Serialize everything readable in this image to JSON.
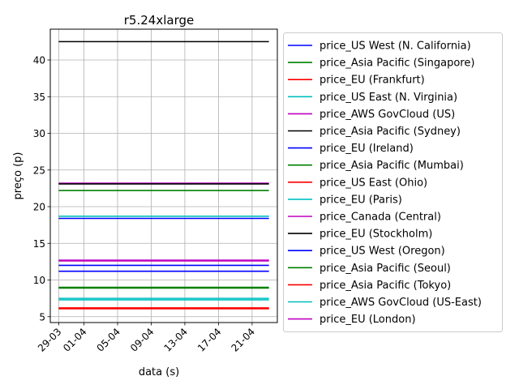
{
  "chart_data": {
    "type": "line",
    "title": "r5.24xlarge",
    "xlabel": "data (s)",
    "ylabel": "preço (p)",
    "x_range": [
      "2018-03-29",
      "2018-04-23"
    ],
    "xlim": [
      "2018-03-28",
      "2018-04-24"
    ],
    "ylim": [
      4.2,
      44.2
    ],
    "x_ticks": [
      {
        "date": "2018-03-29",
        "label": "29-03"
      },
      {
        "date": "2018-04-01",
        "label": "01-04"
      },
      {
        "date": "2018-04-05",
        "label": "05-04"
      },
      {
        "date": "2018-04-09",
        "label": "09-04"
      },
      {
        "date": "2018-04-13",
        "label": "13-04"
      },
      {
        "date": "2018-04-17",
        "label": "17-04"
      },
      {
        "date": "2018-04-21",
        "label": "21-04"
      }
    ],
    "y_ticks": [
      5,
      10,
      15,
      20,
      25,
      30,
      35,
      40
    ],
    "grid": true,
    "legend_placement": "outside-right",
    "series": [
      {
        "name": "price_US West (N. California)",
        "color": "#0000ff",
        "value": 11.2
      },
      {
        "name": "price_Asia Pacific (Singapore)",
        "color": "#008000",
        "value": 22.2
      },
      {
        "name": "price_EU (Frankfurt)",
        "color": "#ff0000",
        "value": 6.2
      },
      {
        "name": "price_US East (N. Virginia)",
        "color": "#00bfbf",
        "value": 7.3
      },
      {
        "name": "price_AWS GovCloud (US)",
        "color": "#bf00bf",
        "value": 12.6
      },
      {
        "name": "price_Asia Pacific (Sydney)",
        "color": "#000000",
        "value": 42.5
      },
      {
        "name": "price_EU (Ireland)",
        "color": "#0000ff",
        "value": 12.0
      },
      {
        "name": "price_Asia Pacific (Mumbai)",
        "color": "#008000",
        "value": 8.9
      },
      {
        "name": "price_US East (Ohio)",
        "color": "#ff0000",
        "value": 6.1
      },
      {
        "name": "price_EU (Paris)",
        "color": "#00bfbf",
        "value": 18.7
      },
      {
        "name": "price_Canada (Central)",
        "color": "#bf00bf",
        "value": 23.2
      },
      {
        "name": "price_EU (Stockholm)",
        "color": "#000000",
        "value": 23.1
      },
      {
        "name": "price_US West (Oregon)",
        "color": "#0000ff",
        "value": 18.4
      },
      {
        "name": "price_Asia Pacific (Seoul)",
        "color": "#008000",
        "value": 9.0
      },
      {
        "name": "price_Asia Pacific (Tokyo)",
        "color": "#ff0000",
        "value": 6.1
      },
      {
        "name": "price_AWS GovCloud (US-East)",
        "color": "#00bfbf",
        "value": 7.5
      },
      {
        "name": "price_EU (London)",
        "color": "#bf00bf",
        "value": 12.7
      }
    ]
  }
}
